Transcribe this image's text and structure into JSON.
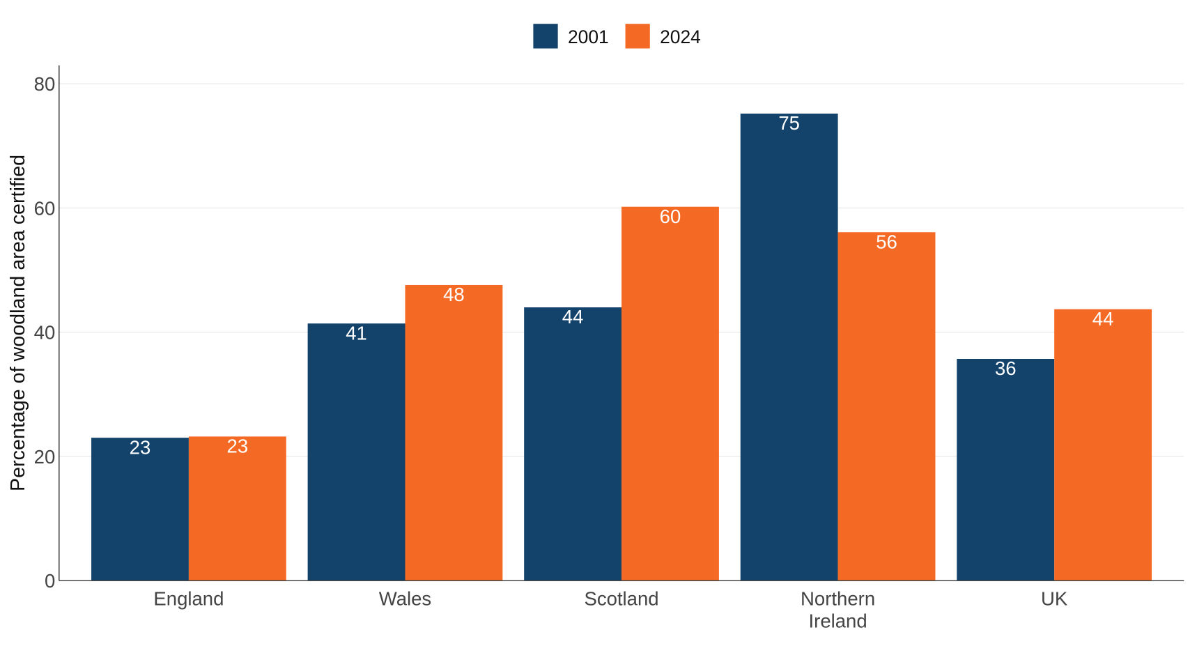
{
  "chart_data": {
    "type": "bar",
    "title": "",
    "xlabel": "",
    "ylabel": "Percentage of woodland area certified",
    "categories": [
      "England",
      "Wales",
      "Scotland",
      "Northern Ireland",
      "UK"
    ],
    "category_lines": [
      [
        "England"
      ],
      [
        "Wales"
      ],
      [
        "Scotland"
      ],
      [
        "Northern",
        "Ireland"
      ],
      [
        "UK"
      ]
    ],
    "series": [
      {
        "name": "2001",
        "color": "#13426B",
        "values": [
          23.0,
          41.4,
          44.0,
          75.2,
          35.7
        ],
        "labels": [
          "23",
          "41",
          "44",
          "75",
          "36"
        ]
      },
      {
        "name": "2024",
        "color": "#F46A25",
        "values": [
          23.2,
          47.6,
          60.2,
          56.1,
          43.7
        ],
        "labels": [
          "23",
          "48",
          "60",
          "56",
          "44"
        ]
      }
    ],
    "ylim": [
      0,
      83
    ],
    "yticks": [
      0,
      20,
      40,
      60,
      80
    ],
    "grid": "horizontal",
    "legend_position": "top-center"
  }
}
